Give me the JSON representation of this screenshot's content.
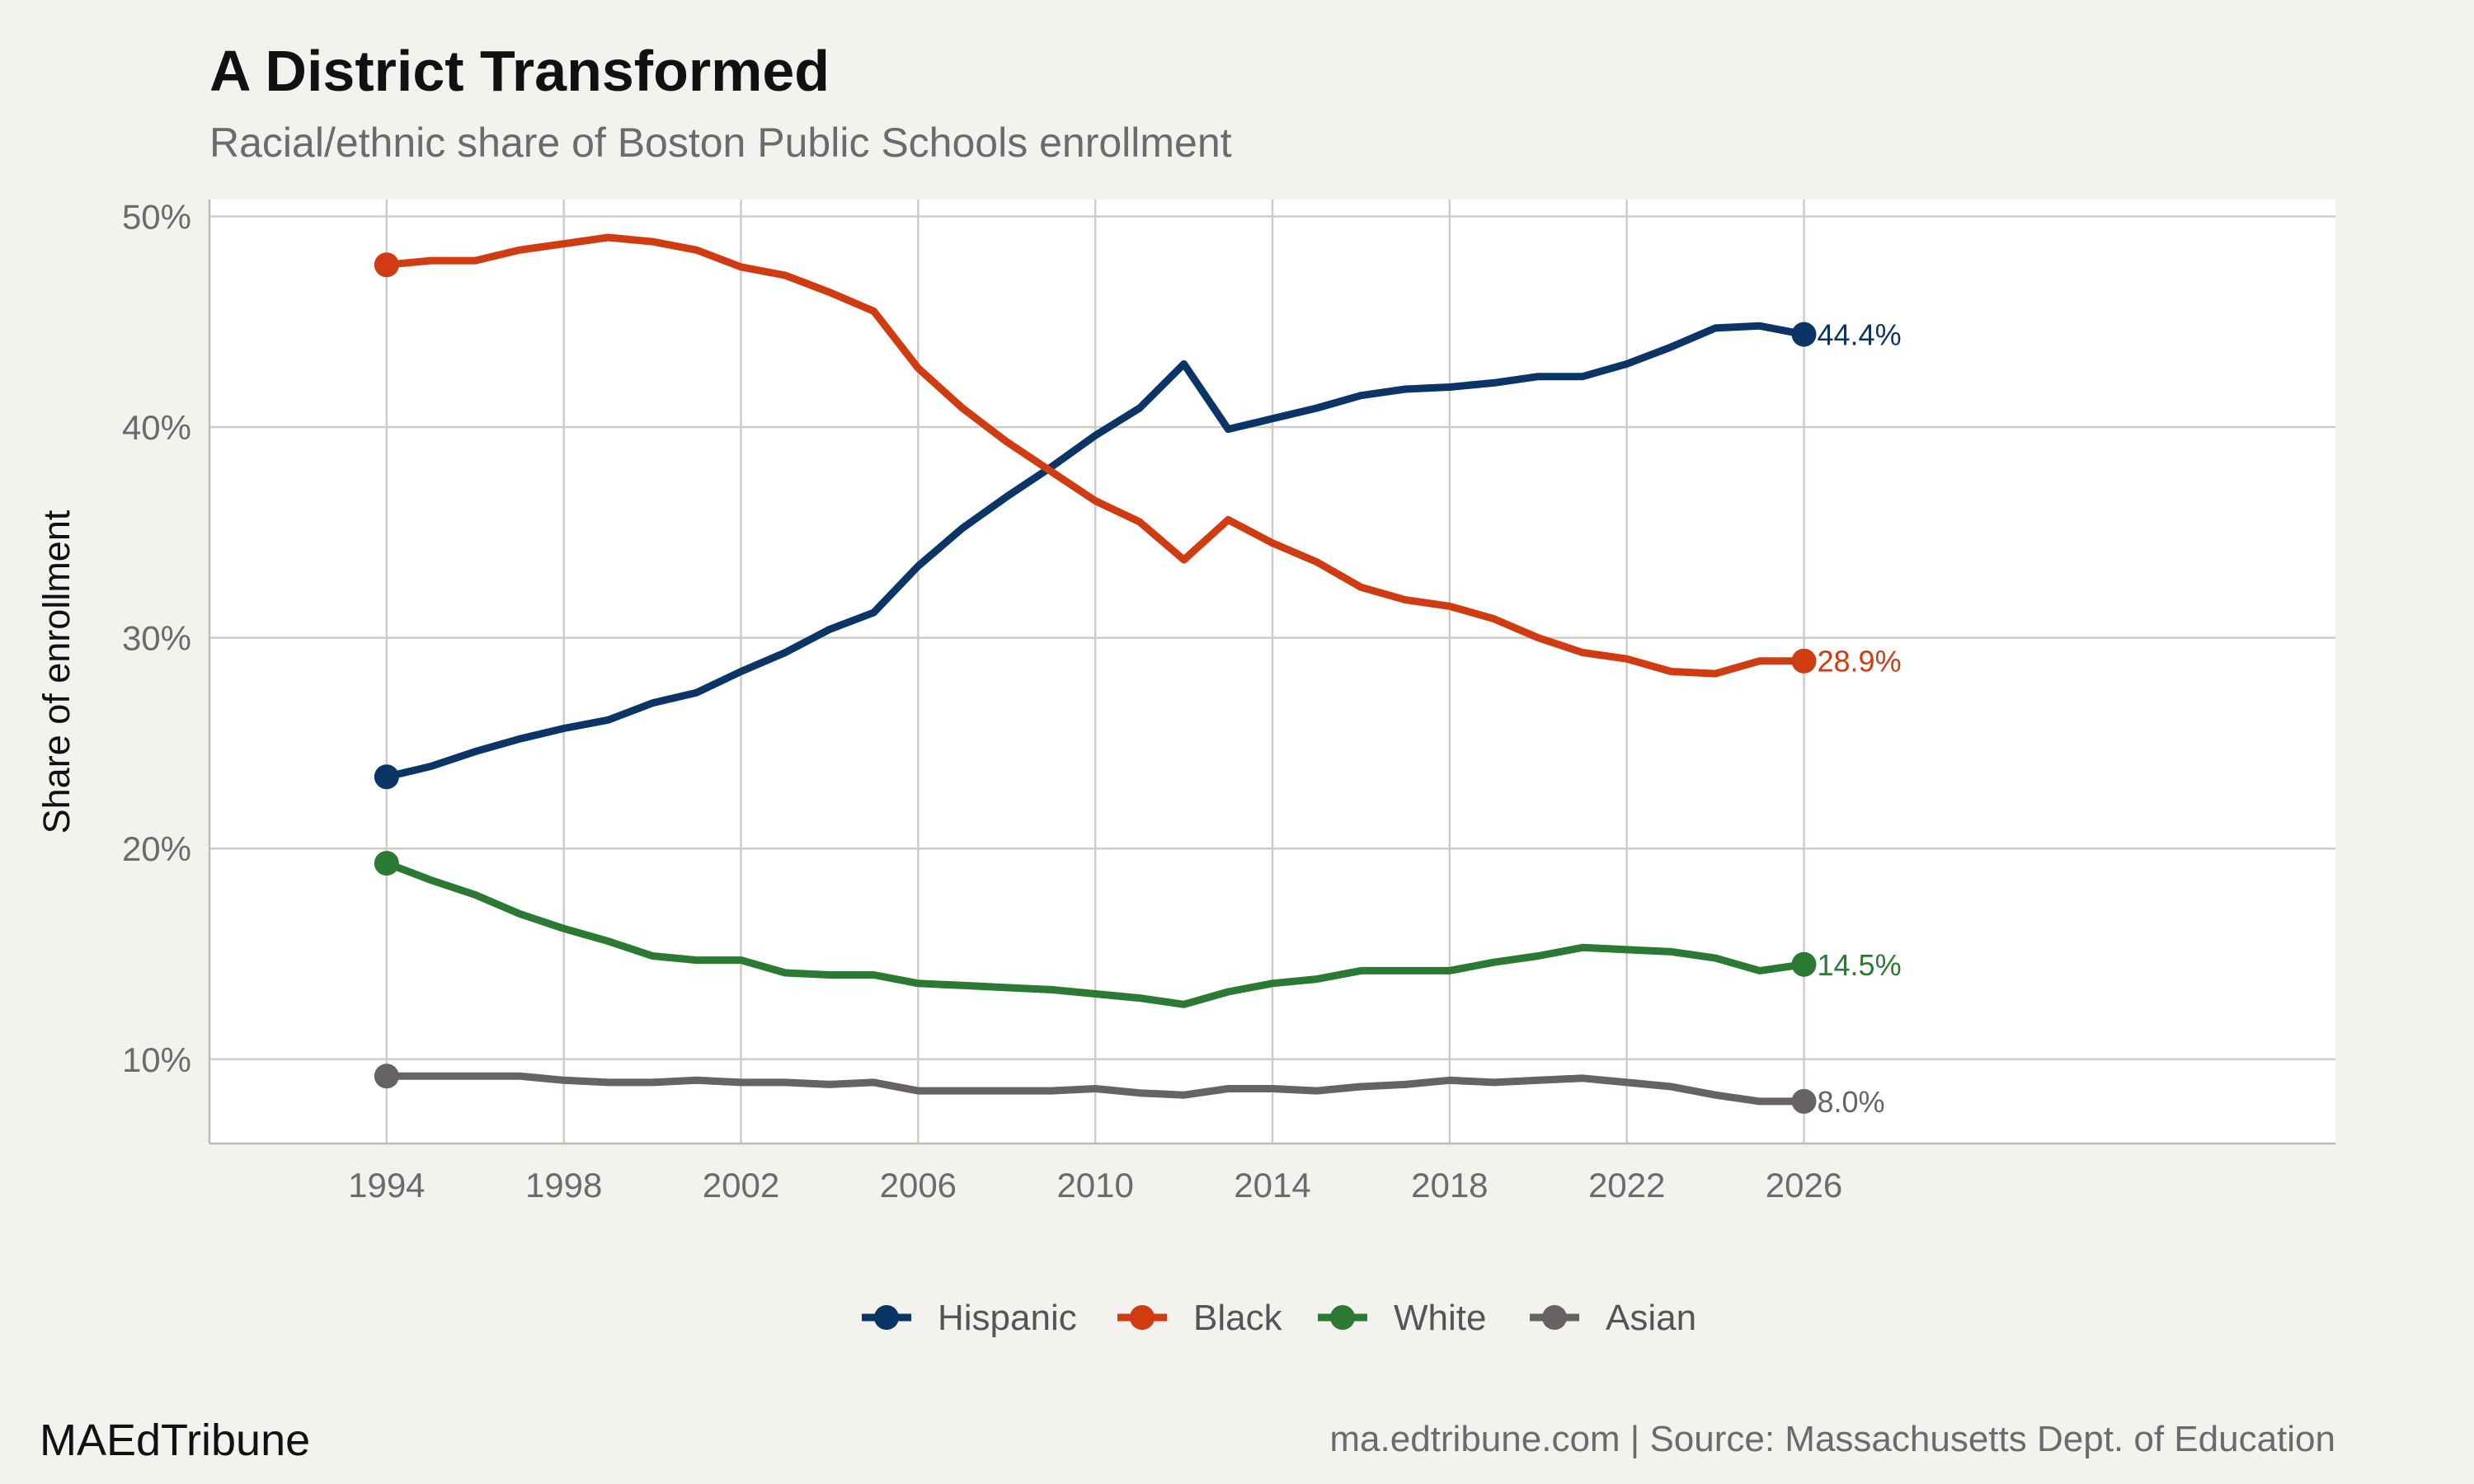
{
  "chart_data": {
    "type": "line",
    "title": "A District Transformed",
    "subtitle": "Racial/ethnic share of Boston Public Schools enrollment",
    "xlabel": "",
    "ylabel": "Share of enrollment",
    "xlim": [
      1990,
      2038
    ],
    "ylim": [
      6,
      50.8
    ],
    "x_ticks": [
      1994,
      1998,
      2002,
      2006,
      2010,
      2014,
      2018,
      2022,
      2026
    ],
    "y_ticks": [
      10,
      20,
      30,
      40,
      50
    ],
    "y_tick_labels": [
      "10%",
      "20%",
      "30%",
      "40%",
      "50%"
    ],
    "grid": true,
    "legend_position": "bottom",
    "x": [
      1994,
      1995,
      1996,
      1997,
      1998,
      1999,
      2000,
      2001,
      2002,
      2003,
      2004,
      2005,
      2006,
      2007,
      2008,
      2009,
      2010,
      2011,
      2012,
      2013,
      2014,
      2015,
      2016,
      2017,
      2018,
      2019,
      2020,
      2021,
      2022,
      2023,
      2024,
      2025,
      2026
    ],
    "series": [
      {
        "name": "Hispanic",
        "color": "#0b3566",
        "end_label": "44.4%",
        "values": [
          23.4,
          23.9,
          24.6,
          25.2,
          25.7,
          26.1,
          26.9,
          27.4,
          28.4,
          29.3,
          30.4,
          31.2,
          33.4,
          35.2,
          36.7,
          38.1,
          39.6,
          40.9,
          43.0,
          39.9,
          40.4,
          40.9,
          41.5,
          41.8,
          41.9,
          42.1,
          42.4,
          42.4,
          43.0,
          43.8,
          44.7,
          44.8,
          44.4
        ]
      },
      {
        "name": "Black",
        "color": "#d13b12",
        "end_label": "28.9%",
        "values": [
          47.7,
          47.9,
          47.9,
          48.4,
          48.7,
          49.0,
          48.8,
          48.4,
          47.6,
          47.2,
          46.4,
          45.5,
          42.8,
          40.9,
          39.3,
          37.9,
          36.5,
          35.5,
          33.7,
          35.6,
          34.5,
          33.6,
          32.4,
          31.8,
          31.5,
          30.9,
          30.0,
          29.3,
          29.0,
          28.4,
          28.3,
          28.9,
          28.9
        ]
      },
      {
        "name": "White",
        "color": "#2b7a34",
        "end_label": "14.5%",
        "values": [
          19.3,
          18.5,
          17.8,
          16.9,
          16.2,
          15.6,
          14.9,
          14.7,
          14.7,
          14.1,
          14.0,
          14.0,
          13.6,
          13.5,
          13.4,
          13.3,
          13.1,
          12.9,
          12.6,
          13.2,
          13.6,
          13.8,
          14.2,
          14.2,
          14.2,
          14.6,
          14.9,
          15.3,
          15.2,
          15.1,
          14.8,
          14.2,
          14.5
        ]
      },
      {
        "name": "Asian",
        "color": "#666362",
        "end_label": "8.0%",
        "values": [
          9.2,
          9.2,
          9.2,
          9.2,
          9.0,
          8.9,
          8.9,
          9.0,
          8.9,
          8.9,
          8.8,
          8.9,
          8.5,
          8.5,
          8.5,
          8.5,
          8.6,
          8.4,
          8.3,
          8.6,
          8.6,
          8.5,
          8.7,
          8.8,
          9.0,
          8.9,
          9.0,
          9.1,
          8.9,
          8.7,
          8.3,
          8.0,
          8.0
        ]
      }
    ]
  },
  "footer": {
    "brand": "MAEdTribune",
    "source": "ma.edtribune.com | Source: Massachusetts Dept. of Education"
  }
}
